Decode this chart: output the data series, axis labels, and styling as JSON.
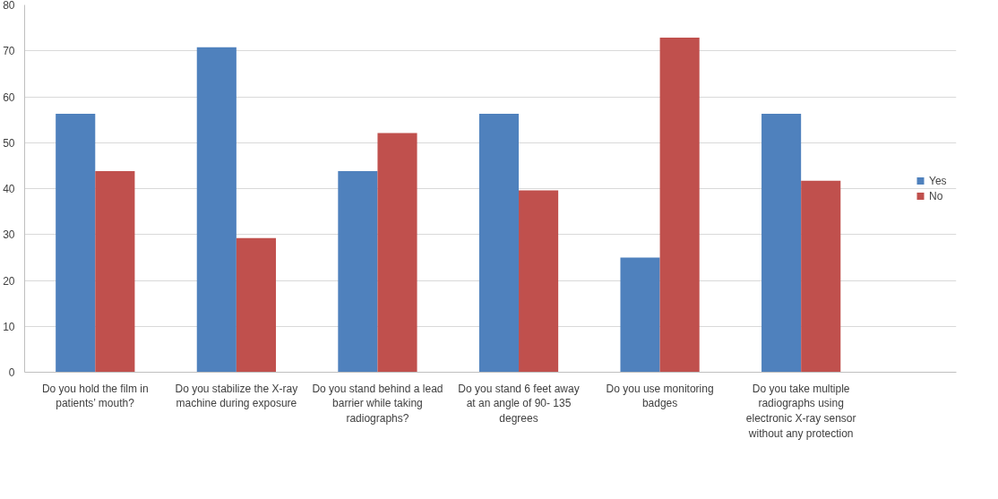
{
  "chart_data": {
    "type": "bar",
    "categories": [
      "Do you hold the film in patients’ mouth?",
      "Do you stabilize the X-ray machine during exposure",
      "Do you stand behind a lead barrier while taking radiographs?",
      "Do you stand 6 feet away at an angle of 90- 135 degrees",
      "Do you use monitoring badges",
      "Do you take multiple radiographs using electronic X-ray sensor without any protection"
    ],
    "series": [
      {
        "name": "Yes",
        "color": "#4f81bd",
        "values": [
          56.3,
          70.8,
          43.8,
          56.3,
          25.0,
          56.3
        ]
      },
      {
        "name": "No",
        "color": "#c0504d",
        "values": [
          43.8,
          29.2,
          52.1,
          39.6,
          72.9,
          41.7
        ]
      }
    ],
    "ylim": [
      0,
      80
    ],
    "yticks": [
      0,
      10,
      20,
      30,
      40,
      50,
      60,
      70,
      80
    ],
    "grid": "y",
    "legend": "right"
  }
}
